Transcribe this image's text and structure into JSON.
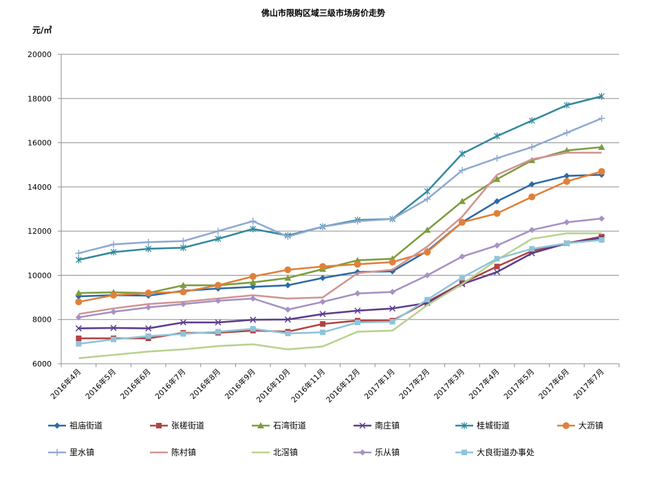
{
  "chart_data": {
    "type": "line",
    "title": "佛山市限购区域三级市场房价走势",
    "unit_label": "元/㎡",
    "xlabel": "",
    "ylabel": "",
    "ylim": [
      6000,
      20000
    ],
    "yticks": [
      6000,
      8000,
      10000,
      12000,
      14000,
      16000,
      18000,
      20000
    ],
    "grid": true,
    "legend_position": "bottom",
    "categories": [
      "2016年4月",
      "2016年5月",
      "2016年6月",
      "2016年7月",
      "2016年8月",
      "2016年9月",
      "2016年10月",
      "2016年11月",
      "2016年12月",
      "2017年1月",
      "2017年2月",
      "2017年3月",
      "2017年4月",
      "2017年5月",
      "2017年6月",
      "2017年7月"
    ],
    "series": [
      {
        "name": "祖庙街道",
        "color": "#2e6aa6",
        "marker": "diamond",
        "values": [
          9050,
          9100,
          9080,
          9300,
          9400,
          9480,
          9550,
          9880,
          10150,
          10180,
          11100,
          12400,
          13350,
          14120,
          14500,
          14550
        ]
      },
      {
        "name": "张槎街道",
        "color": "#b34242",
        "marker": "square",
        "values": [
          7150,
          7150,
          7150,
          7400,
          7400,
          7500,
          7450,
          7800,
          7950,
          7950,
          8800,
          9650,
          10400,
          11100,
          11450,
          11750
        ]
      },
      {
        "name": "石湾街道",
        "color": "#7d9c3f",
        "marker": "triangle",
        "values": [
          9200,
          9230,
          9200,
          9550,
          9550,
          9680,
          9880,
          10280,
          10680,
          10750,
          12050,
          13350,
          14350,
          15200,
          15650,
          15800
        ]
      },
      {
        "name": "南庄镇",
        "color": "#5c3d8c",
        "marker": "x",
        "values": [
          7600,
          7620,
          7600,
          7870,
          7870,
          7990,
          8000,
          8250,
          8400,
          8500,
          8750,
          9600,
          10150,
          11000,
          11450,
          11700
        ]
      },
      {
        "name": "桂城街道",
        "color": "#33899e",
        "marker": "star",
        "values": [
          10700,
          11050,
          11200,
          11250,
          11650,
          12100,
          11800,
          12200,
          12500,
          12550,
          13800,
          15500,
          16300,
          17000,
          17700,
          18100
        ]
      },
      {
        "name": "大沥镇",
        "color": "#e0813b",
        "marker": "circle",
        "values": [
          8800,
          9100,
          9200,
          9250,
          9550,
          9950,
          10250,
          10400,
          10500,
          10600,
          11050,
          12400,
          12800,
          13550,
          14250,
          14700
        ]
      },
      {
        "name": "里水镇",
        "color": "#8fa9d1",
        "marker": "plus",
        "values": [
          11000,
          11400,
          11500,
          11550,
          12000,
          12450,
          11750,
          12200,
          12450,
          12550,
          13450,
          14750,
          15300,
          15800,
          16450,
          17100
        ]
      },
      {
        "name": "陈村镇",
        "color": "#d19492",
        "marker": "none",
        "values": [
          8250,
          8500,
          8700,
          8800,
          8950,
          9100,
          8950,
          9000,
          10100,
          10250,
          11300,
          12650,
          14550,
          15250,
          15550,
          15550
        ]
      },
      {
        "name": "北滘镇",
        "color": "#b9d18f",
        "marker": "none",
        "values": [
          6250,
          6400,
          6550,
          6650,
          6800,
          6880,
          6650,
          6780,
          7450,
          7500,
          8650,
          9600,
          10700,
          11650,
          11900,
          11900
        ]
      },
      {
        "name": "乐从镇",
        "color": "#a592c4",
        "marker": "diamond",
        "values": [
          8100,
          8350,
          8550,
          8700,
          8850,
          8950,
          8450,
          8800,
          9180,
          9250,
          10000,
          10850,
          11350,
          12050,
          12400,
          12570
        ]
      },
      {
        "name": "大良街道办事处",
        "color": "#8fc4d8",
        "marker": "square",
        "values": [
          6900,
          7100,
          7250,
          7350,
          7450,
          7580,
          7370,
          7420,
          7870,
          7900,
          8900,
          9900,
          10750,
          11200,
          11450,
          11600
        ]
      }
    ]
  }
}
